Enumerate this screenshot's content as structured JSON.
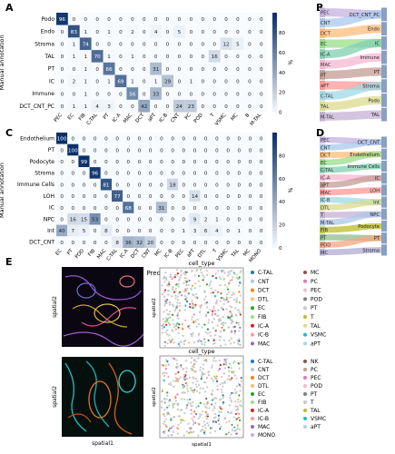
{
  "panel_labels": [
    "A",
    "B",
    "C",
    "D",
    "E"
  ],
  "colorbar": {
    "ticks": [
      "80",
      "60",
      "40",
      "20",
      "0"
    ],
    "unit": "%"
  },
  "chart_data": [
    {
      "type": "heatmap",
      "panel": "A",
      "xlabel": "Predicted",
      "ylabel": "Manual annotation",
      "rows": [
        "Podo",
        "Endo",
        "Stroma",
        "TAL",
        "PT",
        "IC",
        "Immune",
        "DCT_CNT_PC"
      ],
      "cols": [
        "PEC",
        "EC",
        "FIB",
        "C-TAL",
        "PT",
        "IC-A",
        "MAC",
        "DCT",
        "aPT",
        "IC-B",
        "CNT",
        "PC",
        "POD",
        "T",
        "VSMC",
        "MC",
        "B",
        "M-TAL"
      ],
      "values": [
        [
          96,
          0,
          0,
          0,
          0,
          0,
          0,
          0,
          0,
          0,
          0,
          0,
          0,
          0,
          0,
          0,
          0,
          0
        ],
        [
          0,
          83,
          1,
          0,
          1,
          0,
          2,
          0,
          4,
          0,
          5,
          0,
          0,
          0,
          0,
          0,
          0,
          0
        ],
        [
          0,
          1,
          74,
          0,
          0,
          0,
          0,
          0,
          0,
          0,
          0,
          0,
          0,
          0,
          12,
          5,
          0,
          0
        ],
        [
          0,
          1,
          1,
          70,
          1,
          0,
          1,
          0,
          0,
          0,
          0,
          0,
          0,
          16,
          0,
          0,
          0,
          0
        ],
        [
          0,
          0,
          1,
          0,
          66,
          0,
          0,
          0,
          31,
          0,
          0,
          0,
          0,
          0,
          0,
          0,
          0,
          0
        ],
        [
          0,
          2,
          1,
          0,
          1,
          69,
          1,
          0,
          1,
          29,
          0,
          1,
          0,
          0,
          0,
          0,
          0,
          0
        ],
        [
          0,
          0,
          1,
          0,
          0,
          0,
          56,
          0,
          33,
          0,
          0,
          0,
          0,
          0,
          0,
          0,
          0,
          0
        ],
        [
          0,
          1,
          1,
          4,
          3,
          0,
          0,
          42,
          0,
          0,
          24,
          23,
          0,
          0,
          0,
          0,
          0,
          0
        ]
      ],
      "colorbar_range": [
        0,
        100
      ]
    },
    {
      "type": "heatmap",
      "panel": "C",
      "xlabel": "Predicted",
      "ylabel": "Manual annotation",
      "rows": [
        "Endothelium",
        "PT",
        "Podocyte",
        "Stroma",
        "Immune Cells",
        "LOH",
        "IC",
        "NPC",
        "Int",
        "DCT_CNT"
      ],
      "cols": [
        "EC",
        "PT",
        "POD",
        "FIB",
        "MAC",
        "C-TAL",
        "IC-A",
        "DCT",
        "CNT",
        "MC",
        "IC-B",
        "PEC",
        "aPT",
        "DTL",
        "T",
        "VSMC",
        "TAL",
        "MC",
        "MONO"
      ],
      "values": [
        [
          100,
          0,
          0,
          0,
          0,
          0,
          0,
          0,
          0,
          0,
          0,
          0,
          0,
          0,
          0,
          0,
          0,
          0,
          0
        ],
        [
          0,
          100,
          0,
          0,
          0,
          0,
          0,
          0,
          0,
          0,
          0,
          0,
          0,
          0,
          0,
          0,
          0,
          0,
          0
        ],
        [
          0,
          0,
          99,
          0,
          0,
          0,
          0,
          0,
          0,
          0,
          0,
          0,
          0,
          0,
          0,
          0,
          0,
          0,
          0
        ],
        [
          0,
          0,
          0,
          96,
          0,
          0,
          0,
          0,
          0,
          0,
          0,
          0,
          0,
          0,
          0,
          0,
          0,
          0,
          0
        ],
        [
          0,
          0,
          0,
          0,
          81,
          0,
          0,
          0,
          0,
          0,
          18,
          0,
          0,
          0,
          0,
          0,
          0,
          0,
          0
        ],
        [
          0,
          0,
          0,
          0,
          0,
          77,
          0,
          0,
          0,
          0,
          0,
          0,
          14,
          0,
          0,
          0,
          0,
          0,
          0
        ],
        [
          0,
          0,
          0,
          0,
          0,
          0,
          68,
          0,
          0,
          31,
          0,
          0,
          0,
          0,
          0,
          0,
          0,
          0,
          0
        ],
        [
          0,
          16,
          15,
          53,
          0,
          0,
          0,
          0,
          0,
          0,
          0,
          0,
          9,
          2,
          1,
          0,
          0,
          0,
          0
        ],
        [
          40,
          7,
          5,
          0,
          8,
          0,
          0,
          0,
          0,
          0,
          0,
          1,
          3,
          6,
          4,
          0,
          1,
          0,
          0
        ],
        [
          0,
          0,
          0,
          0,
          0,
          8,
          36,
          32,
          20,
          0,
          0,
          0,
          0,
          0,
          0,
          0,
          0,
          0,
          0
        ]
      ],
      "colorbar_range": [
        0,
        100
      ]
    },
    {
      "type": "scatter",
      "panel": "E",
      "title": "cell_type",
      "xlabel": "spatial1",
      "ylabel": "spatial2",
      "legend": [
        {
          "name": "C-TAL",
          "color": "#1f77b4"
        },
        {
          "name": "MC",
          "color": "#8c564b"
        },
        {
          "name": "CNT",
          "color": "#aec7e8"
        },
        {
          "name": "PC",
          "color": "#e377c2"
        },
        {
          "name": "DCT",
          "color": "#ff7f0e"
        },
        {
          "name": "PEC",
          "color": "#f7b6d2"
        },
        {
          "name": "DTL",
          "color": "#ffbb78"
        },
        {
          "name": "POD",
          "color": "#7f7f7f"
        },
        {
          "name": "EC",
          "color": "#2ca02c"
        },
        {
          "name": "PT",
          "color": "#c7c7c7"
        },
        {
          "name": "FIB",
          "color": "#98df8a"
        },
        {
          "name": "T",
          "color": "#bcbd22"
        },
        {
          "name": "IC-A",
          "color": "#d62728"
        },
        {
          "name": "TAL",
          "color": "#dbdb8d"
        },
        {
          "name": "IC-B",
          "color": "#ff9896"
        },
        {
          "name": "VSMC",
          "color": "#17becf"
        },
        {
          "name": "MAC",
          "color": "#9467bd"
        },
        {
          "name": "aPT",
          "color": "#9edae5"
        }
      ]
    },
    {
      "type": "scatter",
      "panel": "E",
      "title": "cell_type",
      "xlabel": "spatial1",
      "ylabel": "spatial2",
      "legend": [
        {
          "name": "C-TAL",
          "color": "#1f77b4"
        },
        {
          "name": "NK",
          "color": "#8c564b"
        },
        {
          "name": "CNT",
          "color": "#aec7e8"
        },
        {
          "name": "PC",
          "color": "#c49c94"
        },
        {
          "name": "DCT",
          "color": "#ff7f0e"
        },
        {
          "name": "PEC",
          "color": "#e377c2"
        },
        {
          "name": "DTL",
          "color": "#ffbb78"
        },
        {
          "name": "POD",
          "color": "#f7b6d2"
        },
        {
          "name": "EC",
          "color": "#2ca02c"
        },
        {
          "name": "PT",
          "color": "#7f7f7f"
        },
        {
          "name": "FIB",
          "color": "#98df8a"
        },
        {
          "name": "T",
          "color": "#c7c7c7"
        },
        {
          "name": "IC-A",
          "color": "#d62728"
        },
        {
          "name": "TAL",
          "color": "#bcbd22"
        },
        {
          "name": "IC-B",
          "color": "#ff9896"
        },
        {
          "name": "VSMC",
          "color": "#17becf"
        },
        {
          "name": "MAC",
          "color": "#9467bd"
        },
        {
          "name": "aPT",
          "color": "#9edae5"
        },
        {
          "name": "MONO",
          "color": "#c5b0d5"
        }
      ]
    }
  ],
  "sankey_B": {
    "left": [
      "PEC",
      "CNT",
      "DCT",
      "EC",
      "IC-A",
      "MAC",
      "PT",
      "aPT",
      "C-TAL",
      "TAL",
      "M-TAL"
    ],
    "right": [
      "DCT_CNT_PC",
      "Endo",
      "IC",
      "Immune",
      "PT",
      "Stroma",
      "Podo",
      "TAL"
    ]
  },
  "sankey_D": {
    "left": [
      "PEC",
      "CNT",
      "DCT",
      "EC",
      "C-TAL",
      "IC-A",
      "aPT",
      "MAC",
      "IC-B",
      "DTL",
      "T",
      "M-TAL",
      "FIB",
      "PT",
      "POD",
      "MC"
    ],
    "right": [
      "DCT_CNT",
      "Endothelium",
      "Immune Cells",
      "IC",
      "LOH",
      "Int",
      "NPC",
      "Podocyte",
      "PT",
      "Stroma"
    ]
  }
}
